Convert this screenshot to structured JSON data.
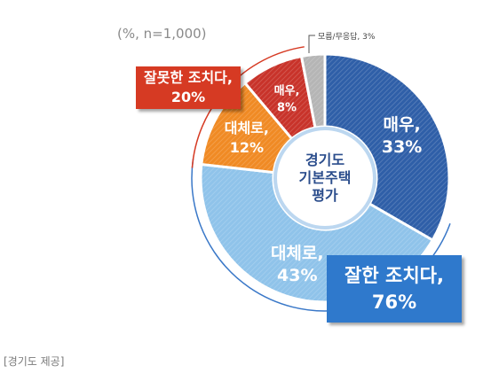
{
  "note": "(%, n=1,000)",
  "center_label": [
    "경기도",
    "기본주택",
    "평가"
  ],
  "summary": {
    "negative": {
      "label": "잘못한 조치다,",
      "value": "20%",
      "color": "#d63a23"
    },
    "positive": {
      "label": "잘한 조치다,",
      "value": "76%",
      "color": "#2f79cc"
    }
  },
  "caption": "[경기도 제공]",
  "chart_data": {
    "type": "pie",
    "title": "",
    "slices": [
      {
        "name": "매우,",
        "value": 33,
        "label": "33%",
        "color": "#2f5fa8"
      },
      {
        "name": "대체로,",
        "value": 43,
        "label": "43%",
        "color": "#8fc3ea"
      },
      {
        "name": "대체로,",
        "value": 12,
        "label": "12%",
        "color": "#f08a24"
      },
      {
        "name": "매우,",
        "value": 8,
        "label": "8%",
        "color": "#c8332a"
      },
      {
        "name": "모름/무응답,",
        "value": 3,
        "label": "3%",
        "color": "#b5b5b5"
      }
    ],
    "legend": "none"
  }
}
